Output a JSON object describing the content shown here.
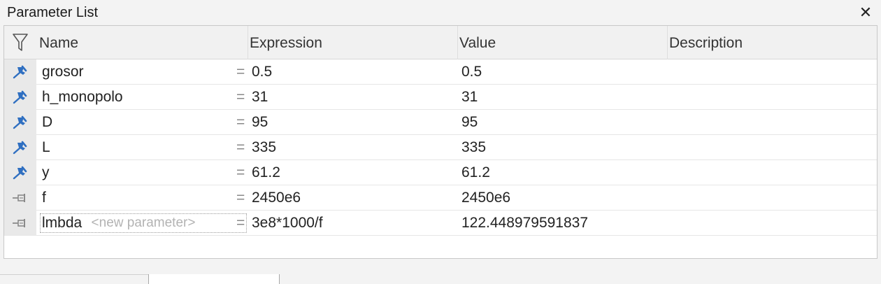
{
  "panel": {
    "title": "Parameter List",
    "close_glyph": "✕"
  },
  "columns": {
    "name": "Name",
    "expression": "Expression",
    "value": "Value",
    "description": "Description"
  },
  "rows": [
    {
      "name": "grosor",
      "eq": "=",
      "expression": "0.5",
      "value": "0.5",
      "description": "",
      "icon": "pinned-icon"
    },
    {
      "name": "h_monopolo",
      "eq": "=",
      "expression": "31",
      "value": "31",
      "description": "",
      "icon": "pinned-icon"
    },
    {
      "name": "D",
      "eq": "=",
      "expression": "95",
      "value": "95",
      "description": "",
      "icon": "pinned-icon"
    },
    {
      "name": "L",
      "eq": "=",
      "expression": "335",
      "value": "335",
      "description": "",
      "icon": "pinned-icon"
    },
    {
      "name": "y",
      "eq": "=",
      "expression": "61.2",
      "value": "61.2",
      "description": "",
      "icon": "pinned-icon"
    },
    {
      "name": "f",
      "eq": "=",
      "expression": "2450e6",
      "value": "2450e6",
      "description": "",
      "icon": "unpinned-icon"
    },
    {
      "name": "lmbda",
      "eq": "=",
      "expression": "3e8*1000/f",
      "value": "122.448979591837",
      "description": "",
      "icon": "unpinned-icon"
    }
  ],
  "new_parameter": {
    "placeholder": "<new parameter>"
  },
  "colors": {
    "pinned": "#2f6fc1",
    "unpinned": "#8a8a8a"
  }
}
